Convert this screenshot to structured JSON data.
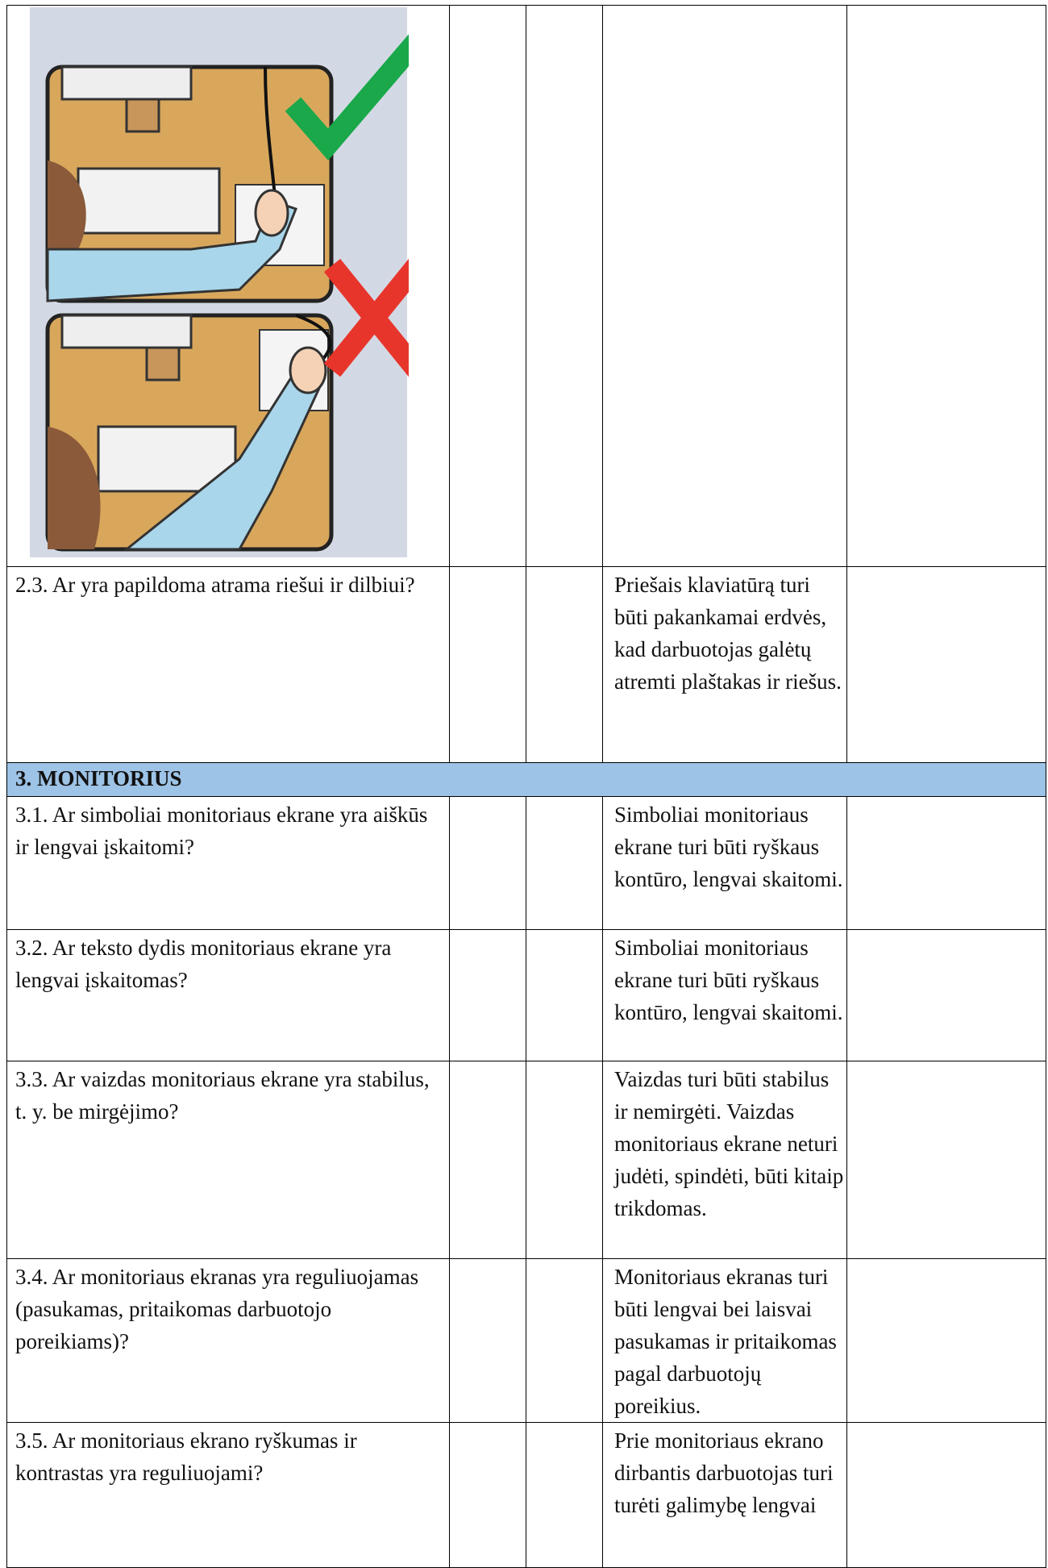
{
  "table": {
    "rows": [
      {
        "question": "2.3. Ar yra papildoma atrama riešui ir dilbiui?",
        "note": "Priešais klaviatūrą turi būti pakankamai erdvės, kad darbuotojas galėtų atremti plaštakas ir riešus."
      },
      {
        "section": "3. MONITORIUS"
      },
      {
        "question": "3.1. Ar simboliai monitoriaus ekrane yra aiškūs ir lengvai įskaitomi?",
        "note": "Simboliai monitoriaus ekrane turi būti ryškaus kontūro, lengvai skaitomi."
      },
      {
        "question": "3.2. Ar teksto dydis monitoriaus ekrane yra lengvai įskaitomas?",
        "note": "Simboliai monitoriaus ekrane turi būti ryškaus kontūro, lengvai skaitomi."
      },
      {
        "question": "3.3. Ar vaizdas monitoriaus ekrane yra stabilus, t. y. be mirgėjimo?",
        "note": "Vaizdas turi būti stabilus ir nemirgėti. Vaizdas monitoriaus ekrane neturi judėti, spindėti, būti kitaip trikdomas."
      },
      {
        "question": "3.4. Ar monitoriaus ekranas yra reguliuojamas (pasukamas, pritaikomas darbuotojo poreikiams)?",
        "note": "Monitoriaus ekranas turi būti lengvai bei laisvai pasukamas ir pritaikomas pagal darbuotojų poreikius."
      },
      {
        "question": "3.5. Ar monitoriaus ekrano ryškumas ir kontrastas yra reguliuojami?",
        "note": "Prie monitoriaus ekrano dirbantis darbuotojas turi turėti galimybę lengvai"
      }
    ]
  }
}
